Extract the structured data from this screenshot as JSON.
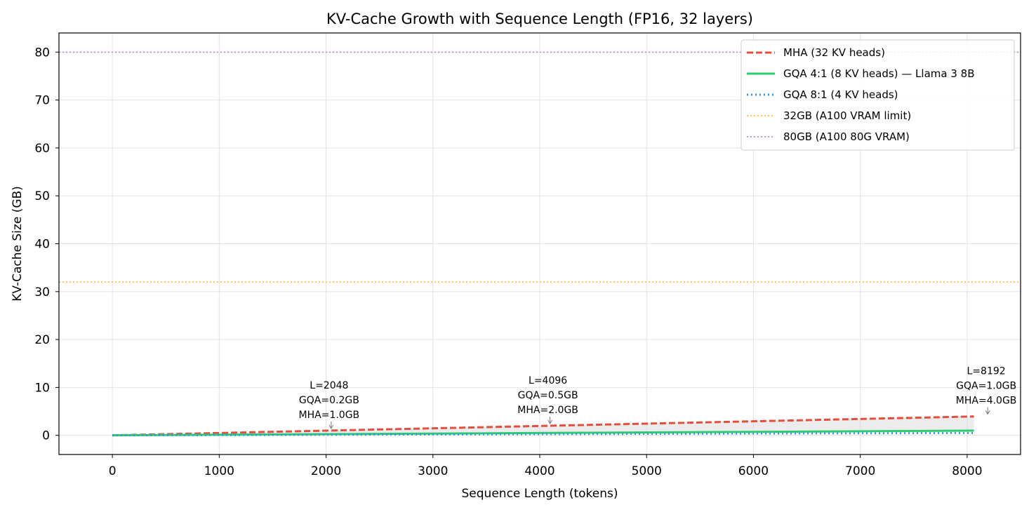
{
  "chart_data": {
    "type": "line",
    "title": "KV-Cache Growth with Sequence Length (FP16, 32 layers)",
    "xlabel": "Sequence Length (tokens)",
    "ylabel": "KV-Cache Size (GB)",
    "xlim": [
      -500,
      8500
    ],
    "ylim": [
      -4,
      84
    ],
    "xticks": [
      0,
      1000,
      2000,
      3000,
      4000,
      5000,
      6000,
      7000,
      8000
    ],
    "yticks": [
      0,
      10,
      20,
      30,
      40,
      50,
      60,
      70,
      80
    ],
    "grid": true,
    "legend_position": "top-right",
    "series": [
      {
        "name": "MHA (32 KV heads)",
        "style": "dashed",
        "color": "#e74c3c",
        "x": [
          0,
          8064
        ],
        "y": [
          0,
          3.94
        ]
      },
      {
        "name": "GQA 4:1 (8 KV heads) — Llama 3 8B",
        "style": "solid",
        "color": "#2ecc71",
        "x": [
          0,
          8064
        ],
        "y": [
          0,
          0.98
        ]
      },
      {
        "name": "GQA 8:1 (4 KV heads)",
        "style": "dotted",
        "color": "#3498db",
        "x": [
          0,
          8064
        ],
        "y": [
          0,
          0.49
        ]
      }
    ],
    "hlines": [
      {
        "name": "32GB (A100 VRAM limit)",
        "y": 32,
        "style": "dotted",
        "color": "#f9c74f"
      },
      {
        "name": "80GB (A100 80G VRAM)",
        "y": 80,
        "style": "dotted",
        "color": "#c39bd3"
      }
    ],
    "fill_between": {
      "from_series": 1,
      "to_series": 0,
      "color": "#d5d5d5"
    },
    "annotations": [
      {
        "lines": [
          "L=2048",
          "GQA=0.2GB",
          "MHA=1.0GB"
        ],
        "x": 2048,
        "y": 1.0
      },
      {
        "lines": [
          "L=4096",
          "GQA=0.5GB",
          "MHA=2.0GB"
        ],
        "x": 4096,
        "y": 2.0
      },
      {
        "lines": [
          "L=8192",
          "GQA=1.0GB",
          "MHA=4.0GB"
        ],
        "x": 8192,
        "y": 4.0
      }
    ]
  }
}
